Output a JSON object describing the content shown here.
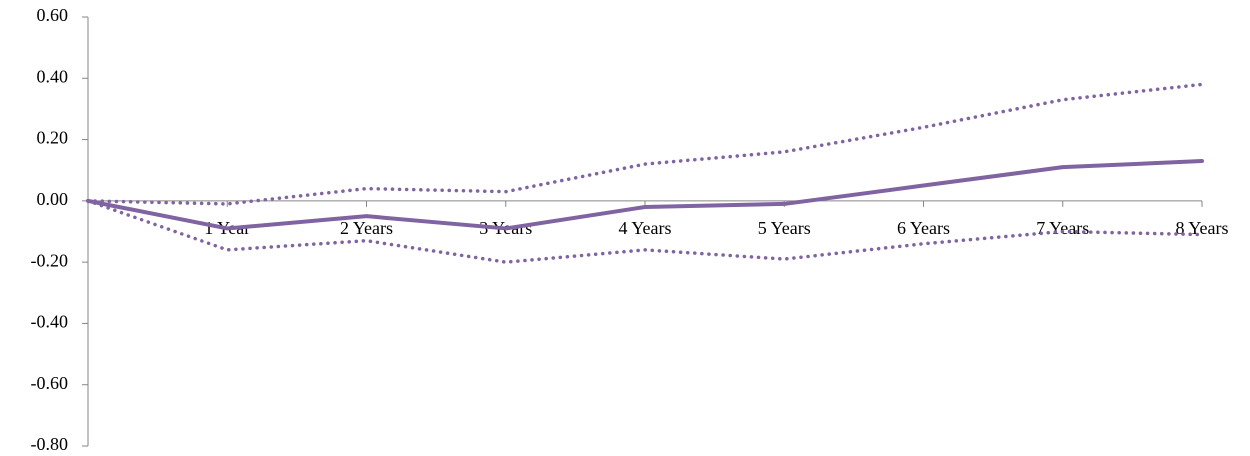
{
  "chart_data": {
    "type": "line",
    "categories": [
      null,
      "1 Year",
      "2 Years",
      "3 Years",
      "4 Years",
      "5 Years",
      "6 Years",
      "7 Years",
      "8 Years"
    ],
    "series": [
      {
        "color": "#8064a2",
        "style": "solid",
        "values": [
          0,
          -0.09,
          -0.05,
          -0.09,
          -0.02,
          -0.01,
          0.05,
          0.11,
          0.13
        ]
      },
      {
        "color": "#8064a2",
        "style": "dotted",
        "values": [
          0,
          -0.01,
          0.04,
          0.03,
          0.12,
          0.16,
          0.24,
          0.33,
          0.38
        ]
      },
      {
        "color": "#8064a2",
        "style": "dotted",
        "values": [
          0,
          -0.16,
          -0.13,
          -0.2,
          -0.16,
          -0.19,
          -0.14,
          -0.1,
          -0.11
        ]
      }
    ],
    "ylim": [
      -0.8,
      0.6
    ],
    "yticks": [
      {
        "value": -0.8,
        "label": "-0.80"
      },
      {
        "value": -0.6,
        "label": "-0.60"
      },
      {
        "value": -0.4,
        "label": "-0.40"
      },
      {
        "value": -0.2,
        "label": "-0.20"
      },
      {
        "value": 0,
        "label": "0.00"
      },
      {
        "value": 0.2,
        "label": "0.20"
      },
      {
        "value": 0.4,
        "label": "0.40"
      },
      {
        "value": 0.6,
        "label": "0.60"
      }
    ],
    "grid": false
  }
}
